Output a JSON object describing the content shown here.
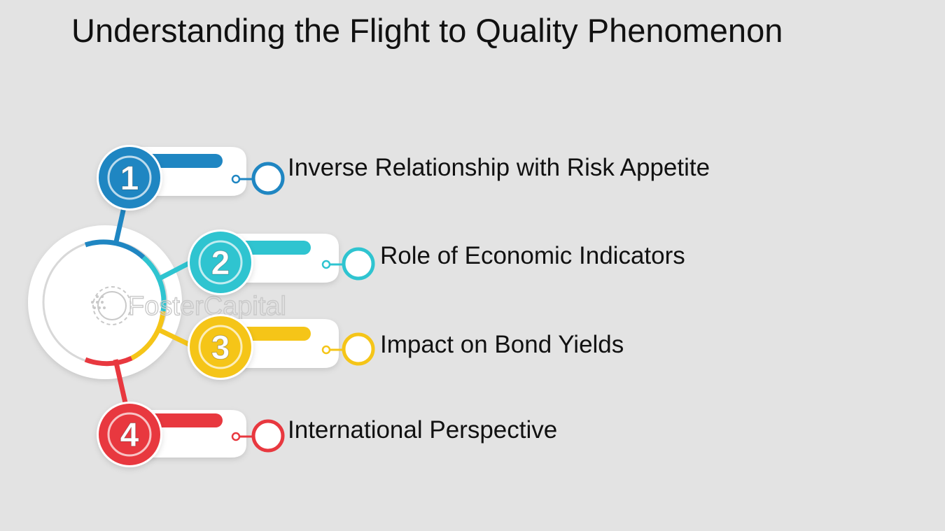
{
  "title": "Understanding the Flight to Quality Phenomenon",
  "watermark": "FosterCapital",
  "steps": [
    {
      "number": "1",
      "label": "Inverse Relationship with Risk Appetite",
      "color": "#1f86c2"
    },
    {
      "number": "2",
      "label": "Role of Economic Indicators",
      "color": "#2fc4d0"
    },
    {
      "number": "3",
      "label": "Impact on Bond Yields",
      "color": "#f5c518"
    },
    {
      "number": "4",
      "label": "International Perspective",
      "color": "#e8383f"
    }
  ]
}
